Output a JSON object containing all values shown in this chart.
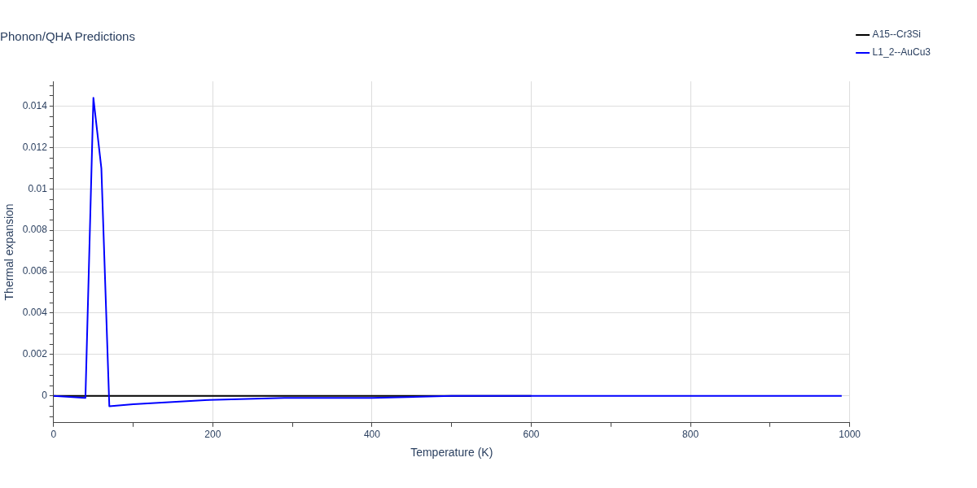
{
  "chart_data": {
    "type": "line",
    "title": "Phonon/QHA Predictions",
    "xlabel": "Temperature (K)",
    "ylabel": "Thermal expansion",
    "xlim": [
      0,
      1000
    ],
    "xticks": [
      0,
      {
        "value": 100,
        "label": null
      },
      200,
      {
        "value": 300,
        "label": null
      },
      400,
      {
        "value": 500,
        "label": null
      },
      600,
      {
        "value": 700,
        "label": null
      },
      800,
      {
        "value": 900,
        "label": null
      },
      1000
    ],
    "ylim": [
      -0.0013,
      0.0152
    ],
    "yticks": [
      {
        "value": -0.001,
        "label": null
      },
      {
        "value": -0.0005,
        "label": null
      },
      0,
      {
        "value": 0.0005,
        "label": null
      },
      {
        "value": 0.001,
        "label": null
      },
      {
        "value": 0.0015,
        "label": null
      },
      0.002,
      {
        "value": 0.0025,
        "label": null
      },
      {
        "value": 0.003,
        "label": null
      },
      {
        "value": 0.0035,
        "label": null
      },
      0.004,
      {
        "value": 0.0045,
        "label": null
      },
      {
        "value": 0.005,
        "label": null
      },
      {
        "value": 0.0055,
        "label": null
      },
      0.006,
      {
        "value": 0.0065,
        "label": null
      },
      {
        "value": 0.007,
        "label": null
      },
      {
        "value": 0.0075,
        "label": null
      },
      0.008,
      {
        "value": 0.0085,
        "label": null
      },
      {
        "value": 0.009,
        "label": null
      },
      {
        "value": 0.0095,
        "label": null
      },
      0.01,
      {
        "value": 0.0105,
        "label": null
      },
      {
        "value": 0.011,
        "label": null
      },
      {
        "value": 0.0115,
        "label": null
      },
      0.012,
      {
        "value": 0.0125,
        "label": null
      },
      {
        "value": 0.013,
        "label": null
      },
      {
        "value": 0.0135,
        "label": null
      },
      0.014,
      {
        "value": 0.0145,
        "label": null
      },
      {
        "value": 0.015,
        "label": null
      }
    ],
    "grid": true,
    "legend": "top right",
    "marker": "none",
    "line_style": "solid",
    "series": [
      {
        "name": "A15--Cr3Si",
        "color": "#000000",
        "x": [
          0,
          100,
          200,
          300,
          400,
          500,
          600
        ],
        "values": [
          0,
          0,
          0,
          0,
          0,
          0,
          0
        ]
      },
      {
        "name": "L1_2--AuCu3",
        "color": "#0000ff",
        "x": [
          0,
          40,
          50,
          60,
          70,
          100,
          195,
          290,
          400,
          500,
          600,
          800,
          990
        ],
        "values": [
          0,
          -0.0001,
          0.0144,
          0.011,
          -0.0005,
          -0.0004,
          -0.0002,
          -0.0001,
          -0.0001,
          0,
          0,
          0,
          0
        ]
      }
    ]
  }
}
